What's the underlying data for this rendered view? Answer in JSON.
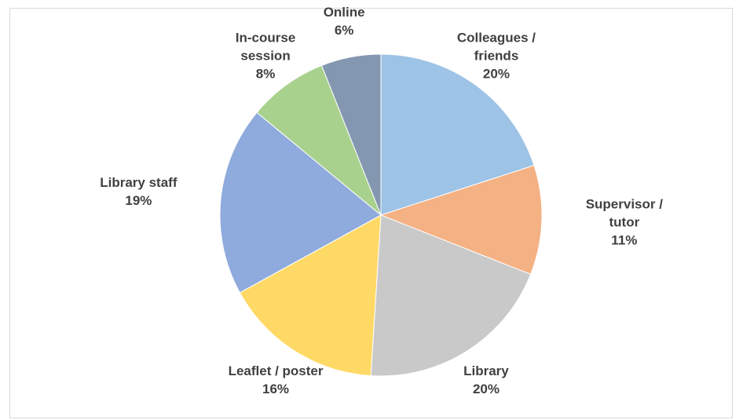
{
  "chart_data": {
    "type": "pie",
    "categories": [
      "Colleagues / friends",
      "Supervisor / tutor",
      "Library",
      "Leaflet / poster",
      "Library staff",
      "In-course session",
      "Online"
    ],
    "values": [
      20,
      11,
      20,
      16,
      19,
      8,
      6
    ],
    "value_labels": [
      "20%",
      "11%",
      "20%",
      "16%",
      "19%",
      "8%",
      "6%"
    ],
    "colors": [
      "#9dc3e6",
      "#f4b183",
      "#c9c9c9",
      "#ffd966",
      "#8faadc",
      "#a9d18e",
      "#8497b0"
    ]
  }
}
